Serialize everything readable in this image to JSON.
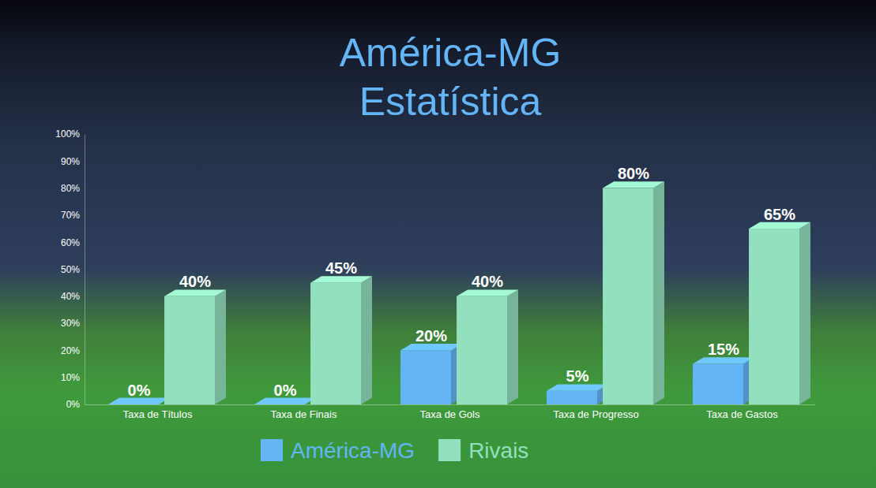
{
  "chart_data": {
    "type": "bar",
    "title": "América-MG\nEstatística",
    "categories": [
      "Taxa de Títulos",
      "Taxa de Finais",
      "Taxa de Gols",
      "Taxa de Progresso",
      "Taxa de Gastos"
    ],
    "series": [
      {
        "name": "América-MG",
        "color": "#64b5f6",
        "values": [
          0,
          0,
          20,
          5,
          15
        ],
        "value_labels": [
          "0%",
          "0%",
          "20%",
          "5%",
          "15%"
        ]
      },
      {
        "name": "Rivais",
        "color": "#93e0bf",
        "values": [
          40,
          45,
          40,
          80,
          65
        ],
        "value_labels": [
          "40%",
          "45%",
          "40%",
          "80%",
          "65%"
        ]
      }
    ],
    "ylim": [
      0,
      100
    ],
    "yticks": [
      {
        "value": 0,
        "label": "0%"
      },
      {
        "value": 10,
        "label": "10%"
      },
      {
        "value": 20,
        "label": "20%"
      },
      {
        "value": 30,
        "label": "30%"
      },
      {
        "value": 40,
        "label": "40%"
      },
      {
        "value": 50,
        "label": "50%"
      },
      {
        "value": 60,
        "label": "60%"
      },
      {
        "value": 70,
        "label": "70%"
      },
      {
        "value": 80,
        "label": "80%"
      },
      {
        "value": 90,
        "label": "90%"
      },
      {
        "value": 100,
        "label": "100%"
      }
    ],
    "grid": false,
    "legend": "bottom",
    "data_labels": true
  }
}
